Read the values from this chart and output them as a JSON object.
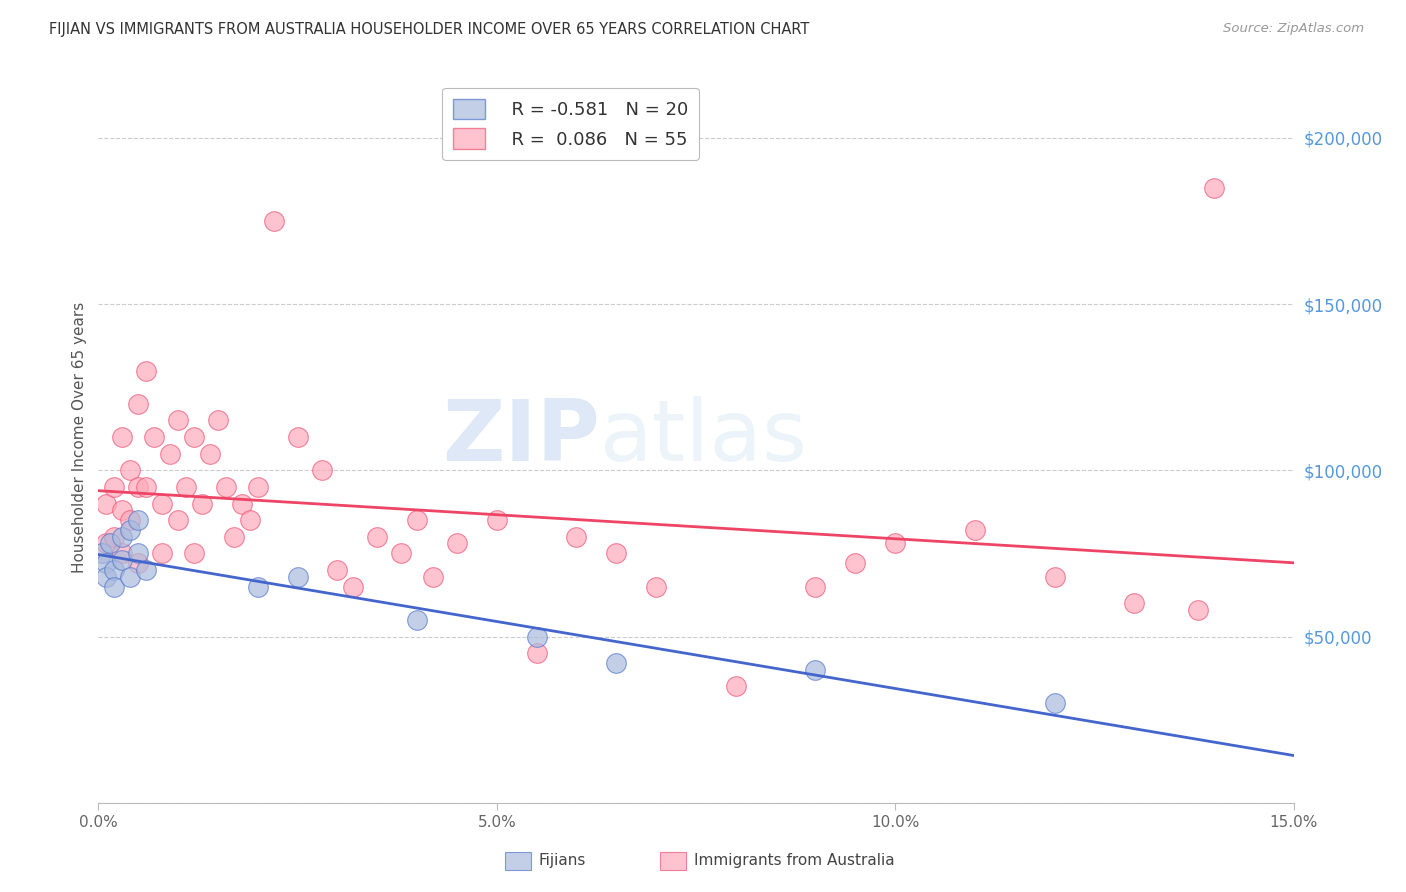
{
  "title": "FIJIAN VS IMMIGRANTS FROM AUSTRALIA HOUSEHOLDER INCOME OVER 65 YEARS CORRELATION CHART",
  "source": "Source: ZipAtlas.com",
  "ylabel": "Householder Income Over 65 years",
  "xlim": [
    0.0,
    0.15
  ],
  "ylim": [
    0,
    220000
  ],
  "yticks": [
    0,
    50000,
    100000,
    150000,
    200000
  ],
  "ytick_labels": [
    "",
    "$50,000",
    "$100,000",
    "$150,000",
    "$200,000"
  ],
  "xticks": [
    0.0,
    0.05,
    0.1,
    0.15
  ],
  "xtick_labels": [
    "0.0%",
    "5.0%",
    "10.0%",
    "15.0%"
  ],
  "fijians_fill": "#aabbdd",
  "fijians_edge": "#5577cc",
  "immigrants_fill": "#ffaabb",
  "immigrants_edge": "#ee5577",
  "fijians_line_color": "#4466cc",
  "immigrants_line_color": "#ee4466",
  "legend_r_fijians": "R = -0.581",
  "legend_n_fijians": "N = 20",
  "legend_r_immigrants": "R =  0.086",
  "legend_n_immigrants": "N = 55",
  "watermark_zip": "ZIP",
  "watermark_atlas": "atlas",
  "ytick_color": "#5599dd",
  "xtick_color": "#666666",
  "fijians_x": [
    0.0005,
    0.001,
    0.001,
    0.0015,
    0.002,
    0.002,
    0.003,
    0.003,
    0.004,
    0.004,
    0.005,
    0.005,
    0.006,
    0.02,
    0.025,
    0.04,
    0.055,
    0.065,
    0.09,
    0.12
  ],
  "fijians_y": [
    75000,
    72000,
    68000,
    78000,
    70000,
    65000,
    80000,
    73000,
    82000,
    68000,
    75000,
    85000,
    70000,
    65000,
    68000,
    55000,
    50000,
    42000,
    40000,
    30000
  ],
  "immigrants_x": [
    0.001,
    0.001,
    0.002,
    0.002,
    0.003,
    0.003,
    0.003,
    0.004,
    0.004,
    0.005,
    0.005,
    0.005,
    0.006,
    0.006,
    0.007,
    0.008,
    0.008,
    0.009,
    0.01,
    0.01,
    0.011,
    0.012,
    0.012,
    0.013,
    0.014,
    0.015,
    0.016,
    0.017,
    0.018,
    0.019,
    0.02,
    0.022,
    0.025,
    0.028,
    0.03,
    0.032,
    0.035,
    0.038,
    0.04,
    0.042,
    0.045,
    0.05,
    0.055,
    0.06,
    0.065,
    0.07,
    0.08,
    0.09,
    0.095,
    0.1,
    0.11,
    0.12,
    0.13,
    0.138,
    0.14
  ],
  "immigrants_y": [
    90000,
    78000,
    95000,
    80000,
    110000,
    88000,
    75000,
    100000,
    85000,
    120000,
    95000,
    72000,
    130000,
    95000,
    110000,
    90000,
    75000,
    105000,
    115000,
    85000,
    95000,
    110000,
    75000,
    90000,
    105000,
    115000,
    95000,
    80000,
    90000,
    85000,
    95000,
    175000,
    110000,
    100000,
    70000,
    65000,
    80000,
    75000,
    85000,
    68000,
    78000,
    85000,
    45000,
    80000,
    75000,
    65000,
    35000,
    65000,
    72000,
    78000,
    82000,
    68000,
    60000,
    58000,
    185000
  ]
}
